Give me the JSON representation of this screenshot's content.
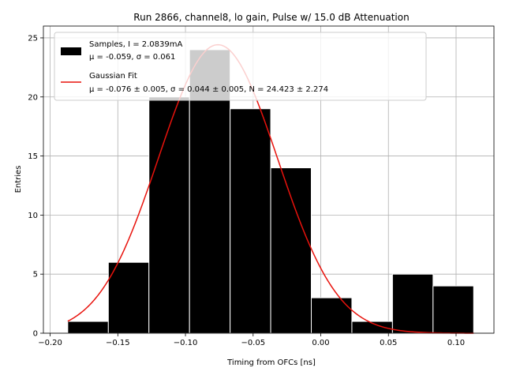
{
  "chart_data": {
    "type": "bar",
    "title": "Run 2866, channel8, lo gain, Pulse w/ 15.0 dB Attenuation",
    "xlabel": "Timing from OFCs [ns]",
    "ylabel": "Entries",
    "xlim": [
      -0.205,
      0.128
    ],
    "ylim": [
      0,
      26
    ],
    "xticks": [
      -0.2,
      -0.15,
      -0.1,
      -0.05,
      0.0,
      0.05,
      0.1
    ],
    "xtick_labels": [
      "−0.20",
      "−0.15",
      "−0.10",
      "−0.05",
      "0.00",
      "0.05",
      "0.10"
    ],
    "yticks": [
      0,
      5,
      10,
      15,
      20,
      25
    ],
    "ytick_labels": [
      "0",
      "5",
      "10",
      "15",
      "20",
      "25"
    ],
    "grid": true,
    "legend_position": "top-left",
    "histogram": {
      "name": "Samples, I = 2.0839mA",
      "stats": "μ = -0.059, σ = 0.061",
      "color": "#000000",
      "bin_edges": [
        -0.187,
        -0.157,
        -0.127,
        -0.097,
        -0.067,
        -0.037,
        -0.007,
        0.023,
        0.053,
        0.083,
        0.113
      ],
      "counts": [
        1,
        6,
        20,
        24,
        19,
        14,
        3,
        1,
        5,
        4
      ]
    },
    "fit": {
      "name": "Gaussian Fit",
      "stats": "μ = -0.076 ± 0.005, σ = 0.044 ± 0.005, N = 24.423 ± 2.274",
      "color": "#e8120c",
      "mu": -0.076,
      "sigma": 0.044,
      "amplitude": 24.423,
      "x_range": [
        -0.187,
        0.113
      ]
    }
  }
}
